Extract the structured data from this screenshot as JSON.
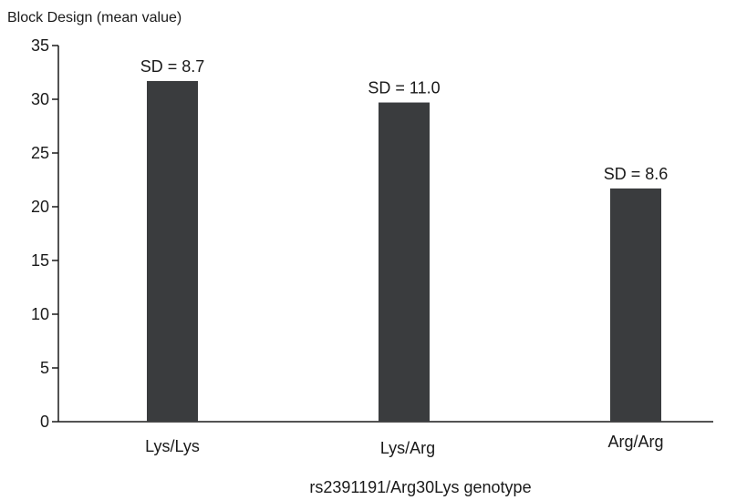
{
  "chart_data": {
    "type": "bar",
    "ylabel": "Block Design (mean value)",
    "xlabel": "rs2391191/Arg30Lys genotype",
    "categories": [
      "Lys/Lys",
      "Lys/Arg",
      "Arg/Arg"
    ],
    "values": [
      31.7,
      29.7,
      21.7
    ],
    "annotations": [
      "SD = 8.7",
      "SD = 11.0",
      "SD = 8.6"
    ],
    "ylim": [
      0,
      35
    ],
    "yticks": [
      "0",
      "5",
      "10",
      "15",
      "20",
      "25",
      "30",
      "35"
    ],
    "grid": false,
    "legend": "none",
    "bar_color": "#3a3c3e"
  }
}
